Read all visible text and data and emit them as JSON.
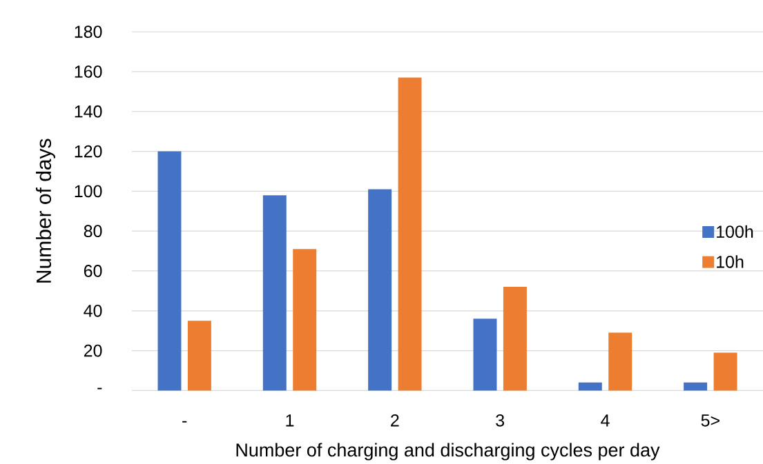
{
  "chart_data": {
    "type": "bar",
    "xlabel": "Number of charging and discharging cycles per day",
    "ylabel": "Number of days",
    "categories": [
      "-",
      "1",
      "2",
      "3",
      "4",
      "5>"
    ],
    "series": [
      {
        "name": "100h",
        "color": "#4472c4",
        "values": [
          120,
          98,
          101,
          36,
          4,
          4
        ]
      },
      {
        "name": "10h",
        "color": "#ed7d31",
        "values": [
          35,
          71,
          157,
          52,
          29,
          19
        ]
      }
    ],
    "ylim": [
      0,
      180
    ],
    "yticks": [
      {
        "value": 0,
        "label": "-"
      },
      20,
      40,
      60,
      80,
      100,
      120,
      140,
      160,
      180
    ],
    "grid": "y",
    "legend": "right"
  }
}
